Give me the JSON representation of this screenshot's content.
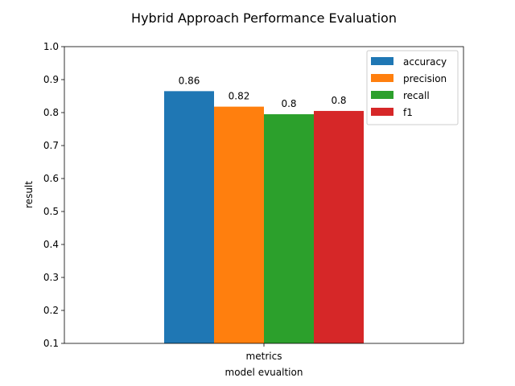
{
  "chart_data": {
    "type": "bar",
    "title": "Hybrid Approach Performance Evaluation",
    "xlabel": "model evualtion",
    "ylabel": "result",
    "categories": [
      "metrics"
    ],
    "ylim": [
      0.1,
      1.0
    ],
    "yticks": [
      "0.1",
      "0.2",
      "0.3",
      "0.4",
      "0.5",
      "0.6",
      "0.7",
      "0.8",
      "0.9",
      "1.0"
    ],
    "grid": false,
    "legend_position": "top-right",
    "series": [
      {
        "name": "accuracy",
        "values": [
          0.865
        ],
        "label": "0.86",
        "color": "#1f77b4"
      },
      {
        "name": "precision",
        "values": [
          0.818
        ],
        "label": "0.82",
        "color": "#ff7f0e"
      },
      {
        "name": "recall",
        "values": [
          0.795
        ],
        "label": "0.8",
        "color": "#2ca02c"
      },
      {
        "name": "f1",
        "values": [
          0.805
        ],
        "label": "0.8",
        "color": "#d62728"
      }
    ]
  }
}
